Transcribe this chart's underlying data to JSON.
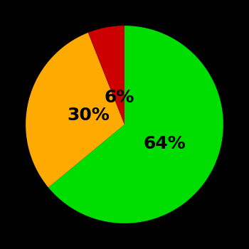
{
  "slices": [
    64,
    30,
    6
  ],
  "colors": [
    "#00dd00",
    "#ffaa00",
    "#cc0000"
  ],
  "labels": [
    "64%",
    "30%",
    "6%"
  ],
  "background_color": "#000000",
  "label_fontsize": 18,
  "label_fontweight": "bold",
  "figsize": [
    3.5,
    3.5
  ],
  "dpi": 100,
  "startangle": 90,
  "counterclock": false
}
